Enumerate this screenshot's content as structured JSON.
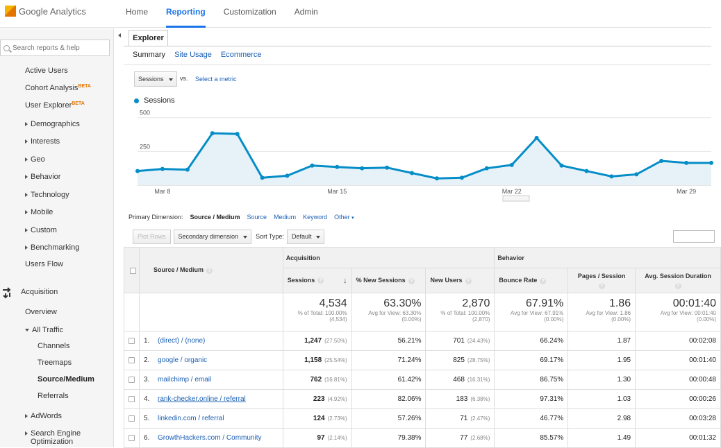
{
  "app": {
    "logo_text": "Google Analytics"
  },
  "nav": {
    "items": [
      "Home",
      "Reporting",
      "Customization",
      "Admin"
    ],
    "active": "Reporting"
  },
  "sidebar": {
    "search_placeholder": "Search reports & help",
    "active_users": "Active Users",
    "cohort": "Cohort Analysis",
    "user_explorer": "User Explorer",
    "beta": "BETA",
    "demographics": "Demographics",
    "interests": "Interests",
    "geo": "Geo",
    "behavior": "Behavior",
    "technology": "Technology",
    "mobile": "Mobile",
    "custom": "Custom",
    "benchmarking": "Benchmarking",
    "users_flow": "Users Flow",
    "acquisition": "Acquisition",
    "overview": "Overview",
    "all_traffic": "All Traffic",
    "channels": "Channels",
    "treemaps": "Treemaps",
    "source_medium": "Source/Medium",
    "referrals": "Referrals",
    "adwords": "AdWords",
    "seo_line1": "Search Engine",
    "seo_line2": "Optimization"
  },
  "main": {
    "tab": "Explorer",
    "subtabs": [
      "Summary",
      "Site Usage",
      "Ecommerce"
    ],
    "metric": "Sessions",
    "vs": "vs.",
    "select_metric": "Select a metric",
    "legend": "Sessions"
  },
  "chart_data": {
    "type": "area",
    "series": [
      {
        "name": "Sessions",
        "values": [
          105,
          120,
          115,
          385,
          380,
          55,
          70,
          145,
          135,
          125,
          130,
          90,
          50,
          55,
          125,
          150,
          350,
          145,
          105,
          65,
          80,
          180,
          165,
          165
        ]
      }
    ],
    "x_tick_labels": [
      "Mar 8",
      "Mar 15",
      "Mar 22",
      "Mar 29"
    ],
    "x_tick_indices": [
      1,
      8,
      15,
      22
    ],
    "y_ticks": [
      "250",
      "500"
    ],
    "ylim": [
      0,
      550
    ],
    "color": "#058dc7"
  },
  "dimension": {
    "label": "Primary Dimension:",
    "active": "Source / Medium",
    "others": [
      "Source",
      "Medium",
      "Keyword",
      "Other"
    ]
  },
  "controls": {
    "plot_rows": "Plot Rows",
    "secondary": "Secondary dimension",
    "sort_label": "Sort Type:",
    "sort_value": "Default"
  },
  "table": {
    "dim_header": "Source / Medium",
    "group_acquisition": "Acquisition",
    "group_behavior": "Behavior",
    "columns": [
      "Sessions",
      "% New Sessions",
      "New Users",
      "Bounce Rate",
      "Pages / Session",
      "Avg. Session Duration"
    ],
    "totals": [
      {
        "big": "4,534",
        "l1": "% of Total: 100.00%",
        "l2": "(4,534)"
      },
      {
        "big": "63.30%",
        "l1": "Avg for View: 63.30%",
        "l2": "(0.00%)"
      },
      {
        "big": "2,870",
        "l1": "% of Total: 100.00%",
        "l2": "(2,870)"
      },
      {
        "big": "67.91%",
        "l1": "Avg for View: 67.91%",
        "l2": "(0.00%)"
      },
      {
        "big": "1.86",
        "l1": "Avg for View: 1.86",
        "l2": "(0.00%)"
      },
      {
        "big": "00:01:40",
        "l1": "Avg for View: 00:01:40",
        "l2": "(0.00%)"
      }
    ],
    "rows": [
      {
        "idx": "1.",
        "src": "(direct) / (none)",
        "sessions": "1,247",
        "sessions_pct": "(27.50%)",
        "new_sessions": "56.21%",
        "new_users": "701",
        "new_users_pct": "(24.43%)",
        "bounce": "66.24%",
        "pages": "1.87",
        "duration": "00:02:08"
      },
      {
        "idx": "2.",
        "src": "google / organic",
        "sessions": "1,158",
        "sessions_pct": "(25.54%)",
        "new_sessions": "71.24%",
        "new_users": "825",
        "new_users_pct": "(28.75%)",
        "bounce": "69.17%",
        "pages": "1.95",
        "duration": "00:01:40"
      },
      {
        "idx": "3.",
        "src": "mailchimp / email",
        "sessions": "762",
        "sessions_pct": "(16.81%)",
        "new_sessions": "61.42%",
        "new_users": "468",
        "new_users_pct": "(16.31%)",
        "bounce": "86.75%",
        "pages": "1.30",
        "duration": "00:00:48"
      },
      {
        "idx": "4.",
        "src": "rank-checker.online / referral",
        "sessions": "223",
        "sessions_pct": "(4.92%)",
        "new_sessions": "82.06%",
        "new_users": "183",
        "new_users_pct": "(6.38%)",
        "bounce": "97.31%",
        "pages": "1.03",
        "duration": "00:00:26"
      },
      {
        "idx": "5.",
        "src": "linkedin.com / referral",
        "sessions": "124",
        "sessions_pct": "(2.73%)",
        "new_sessions": "57.26%",
        "new_users": "71",
        "new_users_pct": "(2.47%)",
        "bounce": "46.77%",
        "pages": "2.98",
        "duration": "00:03:28"
      },
      {
        "idx": "6.",
        "src": "GrowthHackers.com / Community",
        "sessions": "97",
        "sessions_pct": "(2.14%)",
        "new_sessions": "79.38%",
        "new_users": "77",
        "new_users_pct": "(2.68%)",
        "bounce": "85.57%",
        "pages": "1.49",
        "duration": "00:01:32"
      }
    ]
  }
}
